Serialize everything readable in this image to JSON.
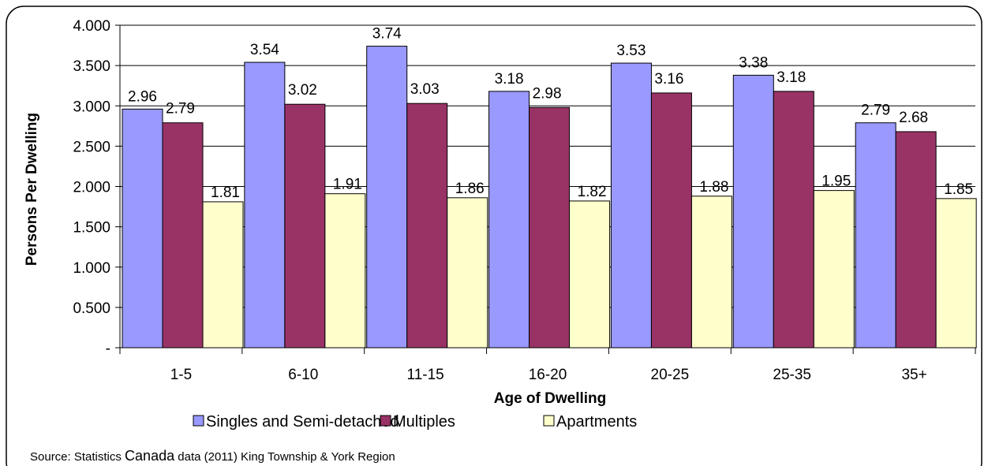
{
  "chart_data": {
    "type": "bar",
    "categories": [
      "1-5",
      "6-10",
      "11-15",
      "16-20",
      "20-25",
      "25-35",
      "35+"
    ],
    "series": [
      {
        "name": "Singles and Semi-detached",
        "color": "#9999FF",
        "values": [
          2.96,
          3.54,
          3.74,
          3.18,
          3.53,
          3.38,
          2.79
        ]
      },
      {
        "name": "Multiples",
        "color": "#993366",
        "values": [
          2.79,
          3.02,
          3.03,
          2.98,
          3.16,
          3.18,
          2.68
        ]
      },
      {
        "name": "Apartments",
        "color": "#FFFFCC",
        "values": [
          1.81,
          1.91,
          1.86,
          1.82,
          1.88,
          1.95,
          1.85
        ]
      }
    ],
    "value_labels": [
      [
        "2.96",
        "3.54",
        "3.74",
        "3.18",
        "3.53",
        "3.38",
        "2.79"
      ],
      [
        "2.79",
        "3.02",
        "3.03",
        "2.98",
        "3.16",
        "3.18",
        "2.68"
      ],
      [
        "1.81",
        "1.91",
        "1.86",
        "1.82",
        "1.88",
        "1.95",
        "1.85"
      ]
    ],
    "title": "",
    "xlabel": "Age of Dwelling",
    "ylabel": "Persons Per Dwelling",
    "ylim": [
      0,
      4
    ],
    "yticks": [
      0,
      0.5,
      1,
      1.5,
      2,
      2.5,
      3,
      3.5,
      4
    ],
    "ytick_labels": [
      "-",
      "0.500",
      "1.000",
      "1.500",
      "2.000",
      "2.500",
      "3.000",
      "3.500",
      "4.000"
    ],
    "grid": true,
    "legend_position": "bottom"
  },
  "source": {
    "prefix": "Source: Statistics ",
    "emphasis": "Canada",
    "suffix": " data (2011) King Township & York Region"
  }
}
